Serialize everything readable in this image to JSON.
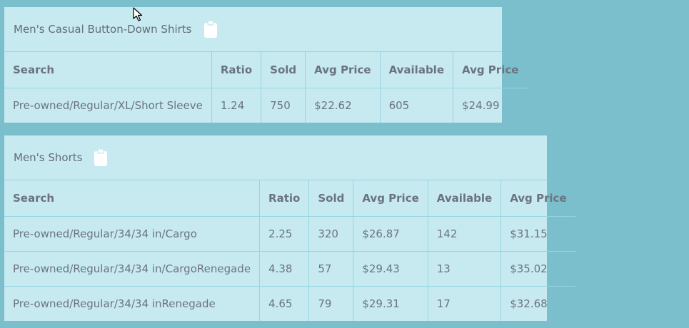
{
  "tables": [
    {
      "title": "Men's Casual Button-Down Shirts",
      "columns": [
        "Search",
        "Ratio",
        "Sold",
        "Avg Price",
        "Available",
        "Avg Price"
      ],
      "rows": [
        [
          "Pre-owned/Regular/XL/Short Sleeve",
          "1.24",
          "750",
          "$22.62",
          "605",
          "$24.99"
        ]
      ]
    },
    {
      "title": "Men's Shorts",
      "columns": [
        "Search",
        "Ratio",
        "Sold",
        "Avg Price",
        "Available",
        "Avg Price"
      ],
      "rows": [
        [
          "Pre-owned/Regular/34/34 in/Cargo",
          "2.25",
          "320",
          "$26.87",
          "142",
          "$31.15"
        ],
        [
          "Pre-owned/Regular/34/34 in/CargoRenegade",
          "4.38",
          "57",
          "$29.43",
          "13",
          "$35.02"
        ],
        [
          "Pre-owned/Regular/34/34 inRenegade",
          "4.65",
          "79",
          "$29.31",
          "17",
          "$32.68"
        ]
      ]
    }
  ],
  "icons": {
    "copy": "clipboard-icon",
    "pointer": "mouse-cursor-icon"
  },
  "colors": {
    "background": "#7bbfcc",
    "card": "#c7eaf1",
    "border": "#94d5e1",
    "icon": "#ffffff"
  }
}
